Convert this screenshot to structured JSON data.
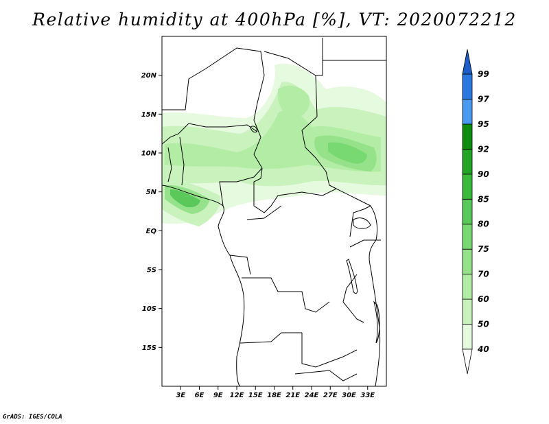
{
  "title": "Relative humidity at 400hPa [%], VT: 2020072212",
  "credit": "GrADS: IGES/COLA",
  "map": {
    "lat_range": [
      -20,
      25
    ],
    "lon_range": [
      0,
      36
    ],
    "y_ticks": [
      {
        "lat": 20,
        "label": "20N"
      },
      {
        "lat": 15,
        "label": "15N"
      },
      {
        "lat": 10,
        "label": "10N"
      },
      {
        "lat": 5,
        "label": "5N"
      },
      {
        "lat": 0,
        "label": "EQ"
      },
      {
        "lat": -5,
        "label": "5S"
      },
      {
        "lat": -10,
        "label": "10S"
      },
      {
        "lat": -15,
        "label": "15S"
      }
    ],
    "x_ticks": [
      {
        "lon": 3,
        "label": "3E"
      },
      {
        "lon": 6,
        "label": "6E"
      },
      {
        "lon": 9,
        "label": "9E"
      },
      {
        "lon": 12,
        "label": "12E"
      },
      {
        "lon": 15,
        "label": "15E"
      },
      {
        "lon": 18,
        "label": "18E"
      },
      {
        "lon": 21,
        "label": "21E"
      },
      {
        "lon": 24,
        "label": "24E"
      },
      {
        "lon": 27,
        "label": "27E"
      },
      {
        "lon": 30,
        "label": "30E"
      },
      {
        "lon": 33,
        "label": "33E"
      }
    ]
  },
  "colorbar": {
    "bins": [
      {
        "color": "#e6fae0"
      },
      {
        "color": "#c9f2bd"
      },
      {
        "color": "#b3eda5"
      },
      {
        "color": "#96e28a"
      },
      {
        "color": "#78d872"
      },
      {
        "color": "#5ac85a"
      },
      {
        "color": "#3aba3c"
      },
      {
        "color": "#23a426"
      },
      {
        "color": "#0e8c10"
      },
      {
        "color": "#4a9af0"
      },
      {
        "color": "#2a78e0"
      }
    ],
    "labels": [
      "40",
      "50",
      "60",
      "70",
      "75",
      "80",
      "85",
      "90",
      "92",
      "95",
      "97",
      "99"
    ],
    "low_color": "#ffffff",
    "high_color": "#1e5cc8"
  }
}
